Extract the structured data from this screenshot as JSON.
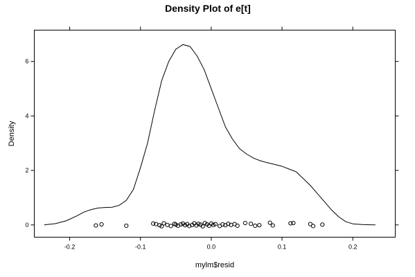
{
  "chart_data": {
    "type": "line",
    "title": "Density Plot of e[t]",
    "xlabel": "mylm$resid",
    "ylabel": "Density",
    "xlim": [
      -0.25,
      0.26
    ],
    "ylim": [
      -0.45,
      7.15
    ],
    "x_ticks": [
      -0.2,
      -0.1,
      0.0,
      0.1,
      0.2
    ],
    "x_tick_labels": [
      "-0.2",
      "-0.1",
      "0.0",
      "0.1",
      "0.2"
    ],
    "y_ticks": [
      0,
      2,
      4,
      6
    ],
    "y_tick_labels": [
      "0",
      "2",
      "4",
      "6"
    ],
    "grid": false,
    "series": [
      {
        "name": "",
        "x": [
          -0.236,
          -0.22,
          -0.205,
          -0.19,
          -0.18,
          -0.17,
          -0.16,
          -0.15,
          -0.14,
          -0.13,
          -0.12,
          -0.11,
          -0.1,
          -0.09,
          -0.08,
          -0.07,
          -0.06,
          -0.05,
          -0.04,
          -0.03,
          -0.02,
          -0.01,
          0.0,
          0.01,
          0.02,
          0.03,
          0.04,
          0.05,
          0.06,
          0.07,
          0.08,
          0.09,
          0.1,
          0.11,
          0.12,
          0.13,
          0.14,
          0.15,
          0.16,
          0.17,
          0.18,
          0.19,
          0.2,
          0.215,
          0.232
        ],
        "y": [
          0.0,
          0.05,
          0.15,
          0.33,
          0.47,
          0.56,
          0.62,
          0.64,
          0.65,
          0.72,
          0.9,
          1.3,
          2.1,
          3.0,
          4.2,
          5.3,
          6.0,
          6.45,
          6.62,
          6.55,
          6.2,
          5.7,
          5.0,
          4.3,
          3.6,
          3.15,
          2.8,
          2.6,
          2.45,
          2.35,
          2.28,
          2.22,
          2.15,
          2.05,
          1.95,
          1.7,
          1.45,
          1.15,
          0.85,
          0.55,
          0.3,
          0.12,
          0.04,
          0.01,
          0.0
        ]
      }
    ],
    "rug_points": [
      [
        -0.163,
        -0.02
      ],
      [
        -0.155,
        0.02
      ],
      [
        -0.12,
        -0.03
      ],
      [
        -0.082,
        0.05
      ],
      [
        -0.078,
        0.03
      ],
      [
        -0.073,
        -0.01
      ],
      [
        -0.07,
        -0.05
      ],
      [
        -0.067,
        0.06
      ],
      [
        -0.062,
        0.0
      ],
      [
        -0.057,
        -0.04
      ],
      [
        -0.052,
        0.04
      ],
      [
        -0.05,
        0.01
      ],
      [
        -0.047,
        -0.03
      ],
      [
        -0.043,
        0.02
      ],
      [
        -0.04,
        0.05
      ],
      [
        -0.037,
        -0.01
      ],
      [
        -0.034,
        0.03
      ],
      [
        -0.031,
        -0.04
      ],
      [
        -0.027,
        0.0
      ],
      [
        -0.024,
        0.06
      ],
      [
        -0.021,
        -0.02
      ],
      [
        -0.018,
        0.04
      ],
      [
        -0.015,
        0.01
      ],
      [
        -0.012,
        -0.05
      ],
      [
        -0.009,
        0.07
      ],
      [
        -0.006,
        0.02
      ],
      [
        -0.003,
        -0.03
      ],
      [
        0.0,
        0.05
      ],
      [
        0.003,
        0.0
      ],
      [
        0.006,
        0.03
      ],
      [
        0.012,
        -0.04
      ],
      [
        0.016,
        0.02
      ],
      [
        0.02,
        -0.01
      ],
      [
        0.024,
        0.04
      ],
      [
        0.028,
        0.0
      ],
      [
        0.033,
        0.03
      ],
      [
        0.037,
        -0.03
      ],
      [
        0.048,
        0.07
      ],
      [
        0.056,
        0.04
      ],
      [
        0.062,
        -0.03
      ],
      [
        0.068,
        -0.01
      ],
      [
        0.083,
        0.08
      ],
      [
        0.087,
        -0.02
      ],
      [
        0.112,
        0.06
      ],
      [
        0.116,
        0.07
      ],
      [
        0.14,
        0.03
      ],
      [
        0.144,
        -0.04
      ],
      [
        0.157,
        0.01
      ]
    ],
    "colors": {
      "line": "#000000",
      "points": "#000000",
      "background": "#ffffff"
    }
  }
}
